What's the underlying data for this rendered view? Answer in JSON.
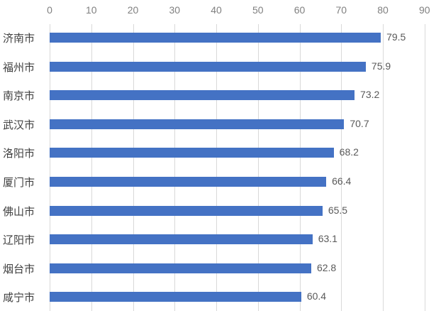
{
  "chart_data": {
    "type": "bar",
    "orientation": "horizontal",
    "title": "",
    "xlabel": "",
    "ylabel": "",
    "categories": [
      "济南市",
      "福州市",
      "南京市",
      "武汉市",
      "洛阳市",
      "厦门市",
      "佛山市",
      "辽阳市",
      "烟台市",
      "咸宁市"
    ],
    "values": [
      79.5,
      75.9,
      73.2,
      70.7,
      68.2,
      66.4,
      65.5,
      63.1,
      62.8,
      60.4
    ],
    "value_labels": [
      "79.5",
      "75.9",
      "73.2",
      "70.7",
      "68.2",
      "66.4",
      "65.5",
      "63.1",
      "62.8",
      "60.4"
    ],
    "xticks": [
      "0",
      "10",
      "20",
      "30",
      "40",
      "50",
      "60",
      "70",
      "80",
      "90"
    ],
    "xlim": [
      0,
      90
    ],
    "axis_position": "top",
    "grid": true,
    "legend": "none",
    "bar_color": "#4472c4"
  }
}
